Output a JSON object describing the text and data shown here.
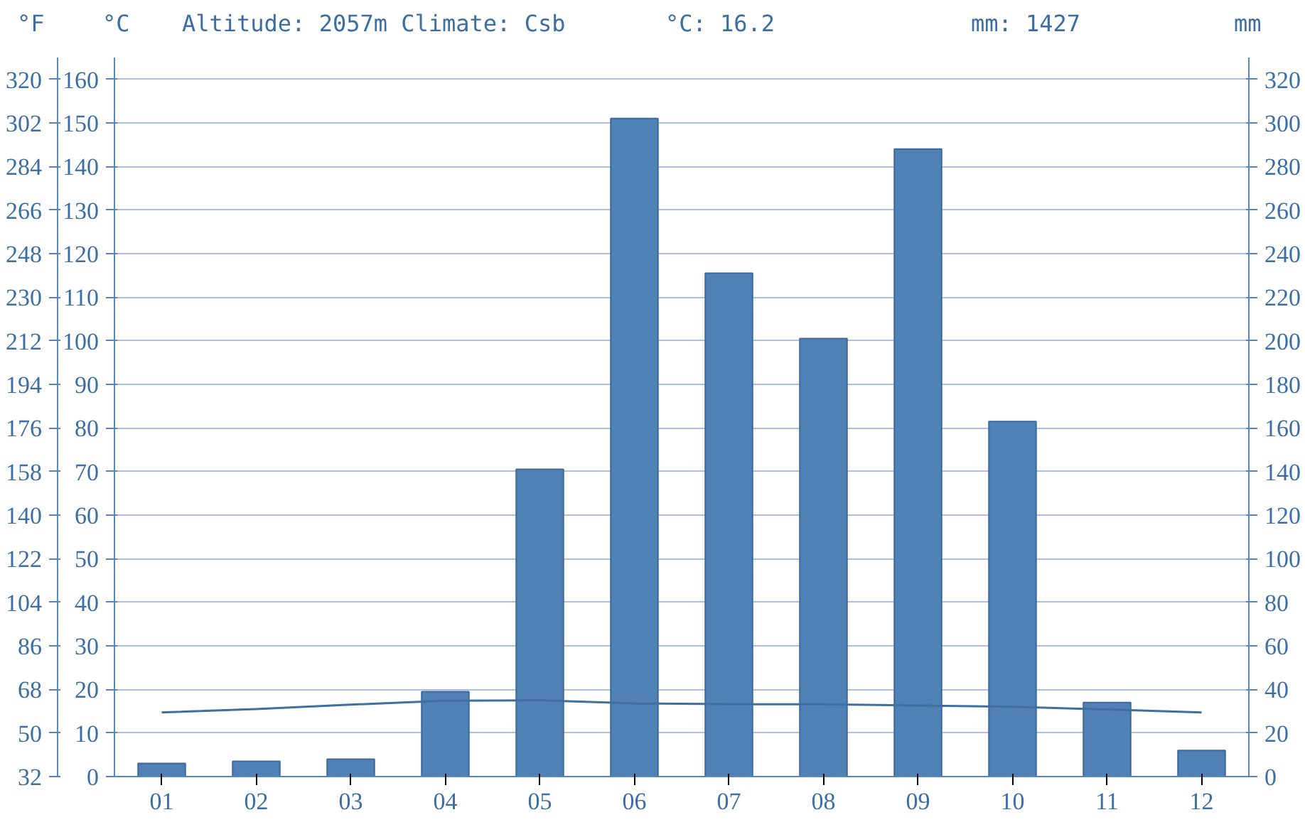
{
  "chart_data": {
    "type": "bar",
    "title": "Altitude: 2057m Climate: Csb",
    "annotations": [
      "°C: 16.2",
      "mm: 1427"
    ],
    "ylabel": "°C",
    "y2label": "mm",
    "y3label": "°F",
    "categories": [
      "01",
      "02",
      "03",
      "04",
      "05",
      "06",
      "07",
      "08",
      "09",
      "10",
      "11",
      "12"
    ],
    "series": [
      {
        "axis": "y2",
        "color": "#4f81b4",
        "values": [
          6,
          7,
          8,
          39,
          141,
          302,
          231,
          201,
          288,
          163,
          34,
          12
        ]
      },
      {
        "type": "line",
        "axis": "y",
        "color": "#3e6f9f",
        "values": [
          14.7,
          15.5,
          16.5,
          17.4,
          17.5,
          16.8,
          16.6,
          16.6,
          16.3,
          16.0,
          15.4,
          14.7
        ]
      }
    ],
    "ylim": [
      0,
      165
    ],
    "yticks": [
      0,
      10,
      20,
      30,
      40,
      50,
      60,
      70,
      80,
      90,
      100,
      110,
      120,
      130,
      140,
      150,
      160
    ],
    "y2lim": [
      0,
      330
    ],
    "y2ticks": [
      0,
      20,
      40,
      60,
      80,
      100,
      120,
      140,
      160,
      180,
      200,
      220,
      240,
      260,
      280,
      300,
      320
    ],
    "y3lim": [
      32,
      329
    ],
    "y3ticks": [
      32,
      50,
      68,
      86,
      104,
      122,
      140,
      158,
      176,
      194,
      212,
      230,
      248,
      266,
      284,
      302,
      320
    ],
    "grid": "y"
  }
}
